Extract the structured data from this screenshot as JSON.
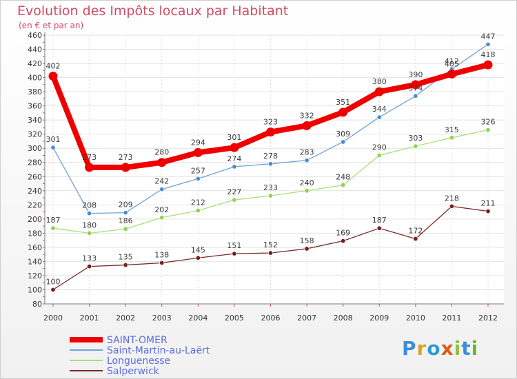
{
  "header": {
    "title": "Evolution des Impôts locaux par Habitant",
    "subtitle": "(en € et par an)"
  },
  "chart_data": {
    "type": "line",
    "title": "Evolution des Impôts locaux par Habitant",
    "subtitle": "(en € et par an)",
    "xlabel": "",
    "ylabel": "",
    "x": [
      "2000",
      "2001",
      "2002",
      "2003",
      "2004",
      "2005",
      "2006",
      "2007",
      "2008",
      "2009",
      "2010",
      "2011",
      "2012"
    ],
    "ylim": [
      80,
      460
    ],
    "yticks": [
      80,
      100,
      120,
      140,
      160,
      180,
      200,
      220,
      240,
      260,
      280,
      300,
      320,
      340,
      360,
      380,
      400,
      420,
      440,
      460
    ],
    "grid": true,
    "legend_position": "bottom-left",
    "series": [
      {
        "name": "SAINT-OMER",
        "color": "#ee0000",
        "values": [
          402,
          273,
          273,
          280,
          294,
          301,
          323,
          332,
          351,
          380,
          390,
          405,
          418
        ]
      },
      {
        "name": "Saint-Martin-au-Laërt",
        "color": "#6ea3d2",
        "values": [
          301,
          208,
          209,
          242,
          257,
          274,
          278,
          283,
          309,
          344,
          374,
          412,
          447
        ]
      },
      {
        "name": "Longuenesse",
        "color": "#9ee06a",
        "values": [
          187,
          180,
          186,
          202,
          212,
          227,
          233,
          240,
          248,
          290,
          303,
          315,
          326
        ]
      },
      {
        "name": "Salperwick",
        "color": "#7a2a2a",
        "values": [
          100,
          133,
          135,
          138,
          145,
          151,
          152,
          158,
          169,
          187,
          172,
          218,
          211
        ]
      }
    ]
  },
  "logo": {
    "letters": [
      "P",
      "r",
      "o",
      "x",
      "i",
      "t",
      "i"
    ],
    "colors": [
      "#3b8fd8",
      "#e0a020",
      "#2f9ad0",
      "#e05a1c",
      "#8ac43f",
      "#3b8fd8",
      "#6bb52c"
    ]
  }
}
